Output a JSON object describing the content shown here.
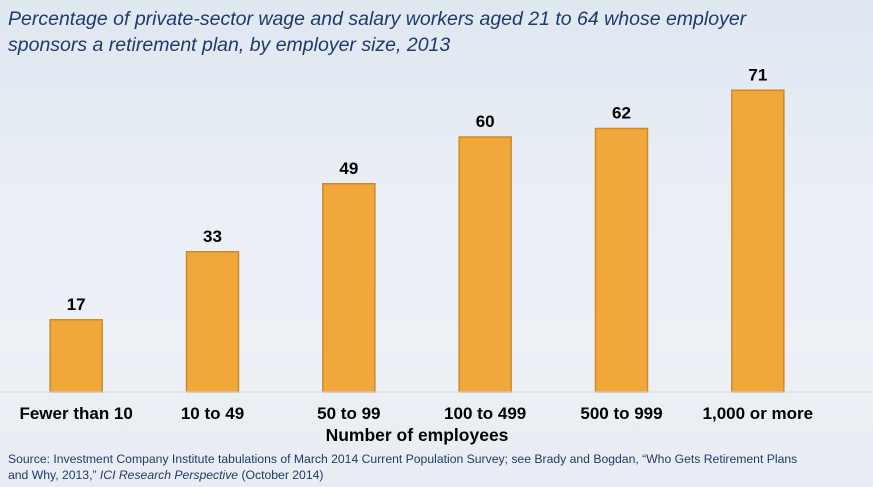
{
  "title_lines": [
    "Percentage of private-sector wage and salary workers aged 21 to 64 whose employer",
    "sponsors a retirement plan, by employer size, 2013"
  ],
  "source": {
    "line1": "Source: Investment Company Institute tabulations of March 2014 Current Population Survey; see Brady and Bogdan, “Who Gets Retirement Plans",
    "line2_pre": "and Why, 2013,” ",
    "line2_italic": "ICI Research Perspective",
    "line2_post": " (October 2014)"
  },
  "colors": {
    "bar_fill": "#f2a73b",
    "bar_stroke": "#c98a2e",
    "title": "#1f3a6b"
  },
  "chart_data": {
    "type": "bar",
    "title": "Percentage of private-sector wage and salary workers aged 21 to 64 whose employer sponsors a retirement plan, by employer size, 2013",
    "categories": [
      "Fewer than 10",
      "10 to 49",
      "50 to 99",
      "100 to 499",
      "500 to 999",
      "1,000 or more"
    ],
    "values": [
      17,
      33,
      49,
      60,
      62,
      71
    ],
    "xlabel": "Number of employees",
    "ylabel": "",
    "ylim": [
      0,
      80
    ],
    "grid": false,
    "legend": "none"
  }
}
